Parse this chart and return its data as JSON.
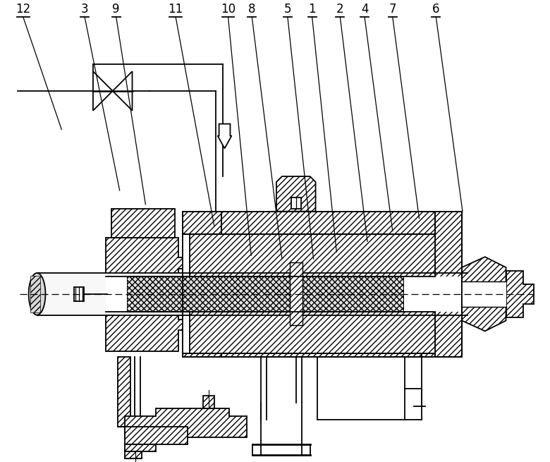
{
  "bg": "#ffffff",
  "lc": "#000000",
  "lw": 1.3,
  "callouts": [
    [
      "12",
      30,
      638,
      85,
      475
    ],
    [
      "3",
      118,
      638,
      168,
      388
    ],
    [
      "9",
      163,
      638,
      205,
      368
    ],
    [
      "11",
      248,
      638,
      303,
      338
    ],
    [
      "10",
      323,
      638,
      356,
      295
    ],
    [
      "8",
      357,
      638,
      400,
      290
    ],
    [
      "5",
      408,
      638,
      445,
      290
    ],
    [
      "1",
      443,
      638,
      478,
      300
    ],
    [
      "2",
      483,
      638,
      522,
      315
    ],
    [
      "4",
      518,
      638,
      558,
      330
    ],
    [
      "7",
      558,
      638,
      596,
      348
    ],
    [
      "6",
      620,
      638,
      658,
      358
    ]
  ]
}
